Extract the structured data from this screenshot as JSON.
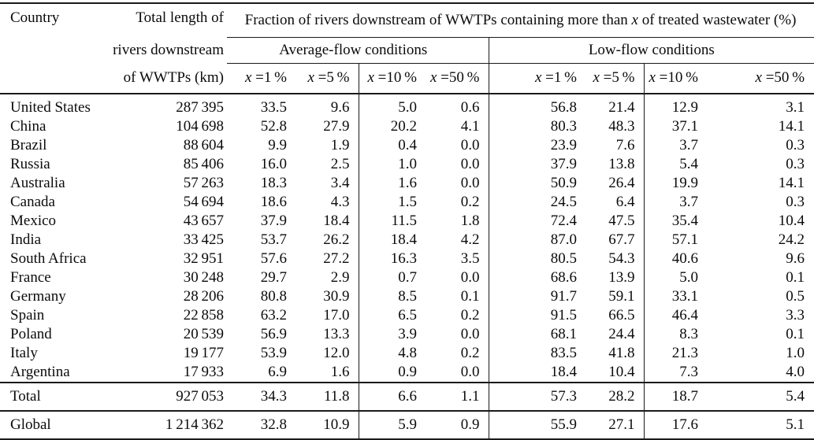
{
  "table": {
    "header": {
      "country": "Country",
      "total_lines": [
        "Total length of",
        "rivers downstream",
        "of WWTPs (km)"
      ],
      "span_title": {
        "pre": "Fraction of rivers downstream of WWTPs containing more than ",
        "x": "x",
        "post": " of treated wastewater (%)"
      },
      "groups": [
        {
          "label": "Average-flow conditions"
        },
        {
          "label": "Low-flow conditions"
        }
      ],
      "x_cols": [
        {
          "x": "x",
          "rest": " =1 %"
        },
        {
          "x": "x",
          "rest": " =5 %"
        },
        {
          "x": "x",
          "rest": " =10 %"
        },
        {
          "x": "x",
          "rest": " =50 %"
        },
        {
          "x": "x",
          "rest": " =1 %"
        },
        {
          "x": "x",
          "rest": " =5 %"
        },
        {
          "x": "x",
          "rest": " =10 %"
        },
        {
          "x": "x",
          "rest": " =50 %"
        }
      ]
    },
    "rows": [
      {
        "name": "United States",
        "total": "287 395",
        "avg": [
          "33.5",
          "9.6",
          "5.0",
          "0.6"
        ],
        "low": [
          "56.8",
          "21.4",
          "12.9",
          "3.1"
        ]
      },
      {
        "name": "China",
        "total": "104 698",
        "avg": [
          "52.8",
          "27.9",
          "20.2",
          "4.1"
        ],
        "low": [
          "80.3",
          "48.3",
          "37.1",
          "14.1"
        ]
      },
      {
        "name": "Brazil",
        "total": "88 604",
        "avg": [
          "9.9",
          "1.9",
          "0.4",
          "0.0"
        ],
        "low": [
          "23.9",
          "7.6",
          "3.7",
          "0.3"
        ]
      },
      {
        "name": "Russia",
        "total": "85 406",
        "avg": [
          "16.0",
          "2.5",
          "1.0",
          "0.0"
        ],
        "low": [
          "37.9",
          "13.8",
          "5.4",
          "0.3"
        ]
      },
      {
        "name": "Australia",
        "total": "57 263",
        "avg": [
          "18.3",
          "3.4",
          "1.6",
          "0.0"
        ],
        "low": [
          "50.9",
          "26.4",
          "19.9",
          "14.1"
        ]
      },
      {
        "name": "Canada",
        "total": "54 694",
        "avg": [
          "18.6",
          "4.3",
          "1.5",
          "0.2"
        ],
        "low": [
          "24.5",
          "6.4",
          "3.7",
          "0.3"
        ]
      },
      {
        "name": "Mexico",
        "total": "43 657",
        "avg": [
          "37.9",
          "18.4",
          "11.5",
          "1.8"
        ],
        "low": [
          "72.4",
          "47.5",
          "35.4",
          "10.4"
        ]
      },
      {
        "name": "India",
        "total": "33 425",
        "avg": [
          "53.7",
          "26.2",
          "18.4",
          "4.2"
        ],
        "low": [
          "87.0",
          "67.7",
          "57.1",
          "24.2"
        ]
      },
      {
        "name": "South Africa",
        "total": "32 951",
        "avg": [
          "57.6",
          "27.2",
          "16.3",
          "3.5"
        ],
        "low": [
          "80.5",
          "54.3",
          "40.6",
          "9.6"
        ]
      },
      {
        "name": "France",
        "total": "30 248",
        "avg": [
          "29.7",
          "2.9",
          "0.7",
          "0.0"
        ],
        "low": [
          "68.6",
          "13.9",
          "5.0",
          "0.1"
        ]
      },
      {
        "name": "Germany",
        "total": "28 206",
        "avg": [
          "80.8",
          "30.9",
          "8.5",
          "0.1"
        ],
        "low": [
          "91.7",
          "59.1",
          "33.1",
          "0.5"
        ]
      },
      {
        "name": "Spain",
        "total": "22 858",
        "avg": [
          "63.2",
          "17.0",
          "6.5",
          "0.2"
        ],
        "low": [
          "91.5",
          "66.5",
          "46.4",
          "3.3"
        ]
      },
      {
        "name": "Poland",
        "total": "20 539",
        "avg": [
          "56.9",
          "13.3",
          "3.9",
          "0.0"
        ],
        "low": [
          "68.1",
          "24.4",
          "8.3",
          "0.1"
        ]
      },
      {
        "name": "Italy",
        "total": "19 177",
        "avg": [
          "53.9",
          "12.0",
          "4.8",
          "0.2"
        ],
        "low": [
          "83.5",
          "41.8",
          "21.3",
          "1.0"
        ]
      },
      {
        "name": "Argentina",
        "total": "17 933",
        "avg": [
          "6.9",
          "1.6",
          "0.9",
          "0.0"
        ],
        "low": [
          "18.4",
          "10.4",
          "7.3",
          "4.0"
        ]
      }
    ],
    "summary_rows": [
      {
        "name": "Total",
        "total": "927 053",
        "avg": [
          "34.3",
          "11.8",
          "6.6",
          "1.1"
        ],
        "low": [
          "57.3",
          "28.2",
          "18.7",
          "5.4"
        ]
      },
      {
        "name": "Global",
        "total": "1 214 362",
        "avg": [
          "32.8",
          "10.9",
          "5.9",
          "0.9"
        ],
        "low": [
          "55.9",
          "27.1",
          "17.6",
          "5.1"
        ]
      }
    ]
  }
}
